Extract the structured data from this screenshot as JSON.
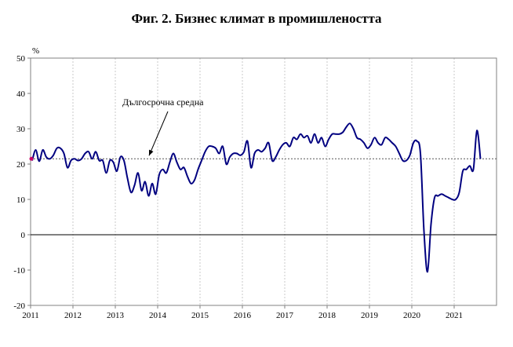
{
  "title": "Фиг. 2. Бизнес климат в промишлеността",
  "chart_data": {
    "type": "line",
    "title": "Фиг. 2. Бизнес климат в промишлеността",
    "xlabel": "",
    "ylabel": "%",
    "ylim": [
      -20,
      50
    ],
    "yticks": [
      -20,
      -10,
      0,
      10,
      20,
      30,
      40,
      50
    ],
    "xticks": [
      "2011",
      "2012",
      "2013",
      "2014",
      "2015",
      "2016",
      "2017",
      "2018",
      "2019",
      "2020",
      "2021"
    ],
    "x_start": "2011-01",
    "grid": {
      "vertical": true,
      "horizontal": false
    },
    "long_term_average": 21.5,
    "annotation": "Дългосрочна средна",
    "colors": {
      "series": "#000080",
      "average": "#555555",
      "grid": "#c8c8c8",
      "start_marker": "#cc0066"
    },
    "series": [
      {
        "frequency": "monthly",
        "values": [
          21.0,
          24.0,
          20.8,
          24.0,
          22.0,
          21.5,
          22.5,
          24.5,
          24.5,
          23.0,
          19.0,
          21.0,
          21.5,
          21.0,
          21.5,
          23.0,
          23.5,
          21.5,
          23.5,
          21.0,
          21.0,
          17.5,
          21.0,
          20.5,
          18.0,
          22.0,
          21.0,
          16.0,
          12.0,
          14.0,
          17.5,
          12.5,
          15.0,
          11.0,
          14.5,
          11.5,
          17.0,
          18.5,
          17.5,
          20.5,
          23.0,
          20.5,
          18.5,
          19.0,
          16.5,
          14.5,
          15.5,
          18.5,
          21.0,
          23.5,
          25.0,
          25.0,
          24.5,
          23.0,
          25.0,
          20.0,
          22.0,
          23.0,
          23.0,
          22.5,
          23.5,
          26.5,
          19.0,
          23.0,
          24.0,
          23.5,
          24.5,
          26.0,
          21.0,
          22.0,
          24.0,
          25.5,
          26.0,
          25.0,
          27.5,
          27.0,
          28.5,
          27.5,
          28.0,
          26.0,
          28.5,
          26.0,
          27.5,
          25.0,
          27.0,
          28.5,
          28.5,
          28.5,
          29.0,
          30.5,
          31.5,
          30.0,
          27.5,
          27.0,
          26.0,
          24.5,
          25.5,
          27.5,
          26.0,
          25.5,
          27.5,
          27.0,
          26.0,
          25.0,
          23.0,
          21.0,
          21.0,
          22.5,
          26.0,
          26.5,
          23.0,
          1.0,
          -10.5,
          3.0,
          10.5,
          11.0,
          11.5,
          11.0,
          10.5,
          10.0,
          10.0,
          12.0,
          18.0,
          18.5,
          19.5,
          18.5,
          29.5,
          21.5
        ]
      }
    ]
  }
}
